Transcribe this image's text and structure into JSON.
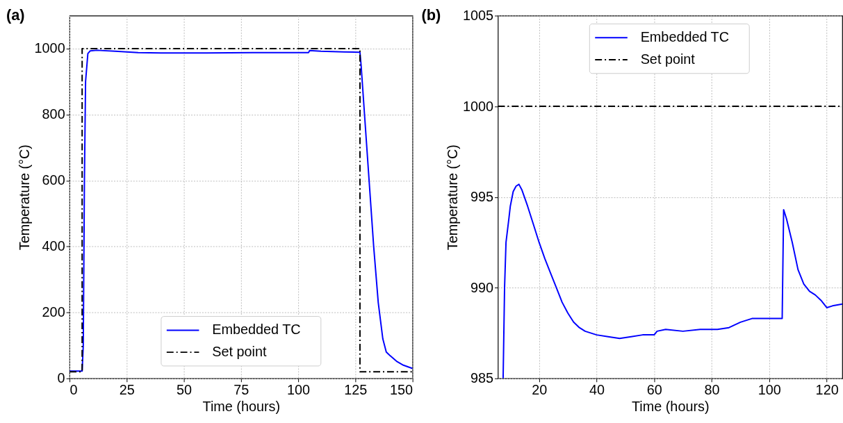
{
  "chart_data": [
    {
      "type": "line",
      "title": "(a)",
      "xlabel": "Time (hours)",
      "ylabel": "Temperature (°C)",
      "xlim": [
        0,
        150
      ],
      "ylim": [
        0,
        1100
      ],
      "xticks": [
        0,
        25,
        50,
        75,
        100,
        125,
        150
      ],
      "yticks": [
        0,
        200,
        400,
        600,
        800,
        1000
      ],
      "grid": true,
      "legend": "bottom",
      "marker": "none",
      "series": [
        {
          "name": "Embedded TC",
          "color": "#0000ff",
          "line_style": "solid",
          "x": [
            0,
            5.5,
            6,
            6.5,
            7,
            8,
            9,
            12,
            20,
            30,
            40,
            60,
            80,
            100,
            104.5,
            105,
            110,
            120,
            127,
            127.5,
            129,
            131,
            133,
            135,
            137,
            138.5,
            140,
            143,
            146,
            150
          ],
          "values": [
            22,
            22,
            100,
            600,
            900,
            985,
            993,
            995,
            992,
            988,
            987,
            987,
            988,
            988,
            988,
            994,
            992,
            990,
            989,
            950,
            800,
            600,
            400,
            230,
            120,
            80,
            70,
            52,
            40,
            30
          ]
        },
        {
          "name": "Set point",
          "color": "#000000",
          "line_style": "dashdot",
          "x": [
            0,
            5.5,
            5.5,
            127,
            127,
            150
          ],
          "values": [
            20,
            20,
            1000,
            1000,
            20,
            20
          ]
        }
      ]
    },
    {
      "type": "line",
      "title": "(b)",
      "xlabel": "Time (hours)",
      "ylabel": "Temperature (°C)",
      "xlim": [
        5.7,
        125.4
      ],
      "ylim": [
        985,
        1005
      ],
      "xticks": [
        20,
        40,
        60,
        80,
        100,
        120
      ],
      "yticks": [
        985,
        990,
        995,
        1000,
        1005
      ],
      "grid": true,
      "legend": "top",
      "marker": "none",
      "series": [
        {
          "name": "Embedded TC",
          "color": "#0000ff",
          "line_style": "solid",
          "x": [
            7.5,
            8,
            8.5,
            9.5,
            10,
            11,
            12,
            13,
            14,
            16,
            18,
            20,
            22,
            24,
            26,
            28,
            30,
            32,
            34,
            36,
            40,
            44,
            48,
            52,
            56,
            60,
            61,
            64,
            70,
            76,
            82,
            86,
            90,
            94,
            98,
            104.5,
            105,
            106,
            108,
            110,
            112,
            114,
            116,
            118,
            120,
            122,
            125.4
          ],
          "values": [
            985,
            990,
            992.5,
            993.8,
            994.5,
            995.3,
            995.6,
            995.7,
            995.4,
            994.5,
            993.5,
            992.5,
            991.6,
            990.8,
            990,
            989.2,
            988.6,
            988.1,
            987.8,
            987.6,
            987.4,
            987.3,
            987.2,
            987.3,
            987.4,
            987.4,
            987.6,
            987.7,
            987.6,
            987.7,
            987.7,
            987.8,
            988.1,
            988.3,
            988.3,
            988.3,
            994.3,
            993.8,
            992.5,
            991,
            990.2,
            989.8,
            989.6,
            989.3,
            988.9,
            989,
            989.1
          ]
        },
        {
          "name": "Set point",
          "color": "#000000",
          "line_style": "dashdot",
          "x": [
            5.7,
            125.4
          ],
          "values": [
            1000,
            1000
          ]
        }
      ]
    }
  ]
}
